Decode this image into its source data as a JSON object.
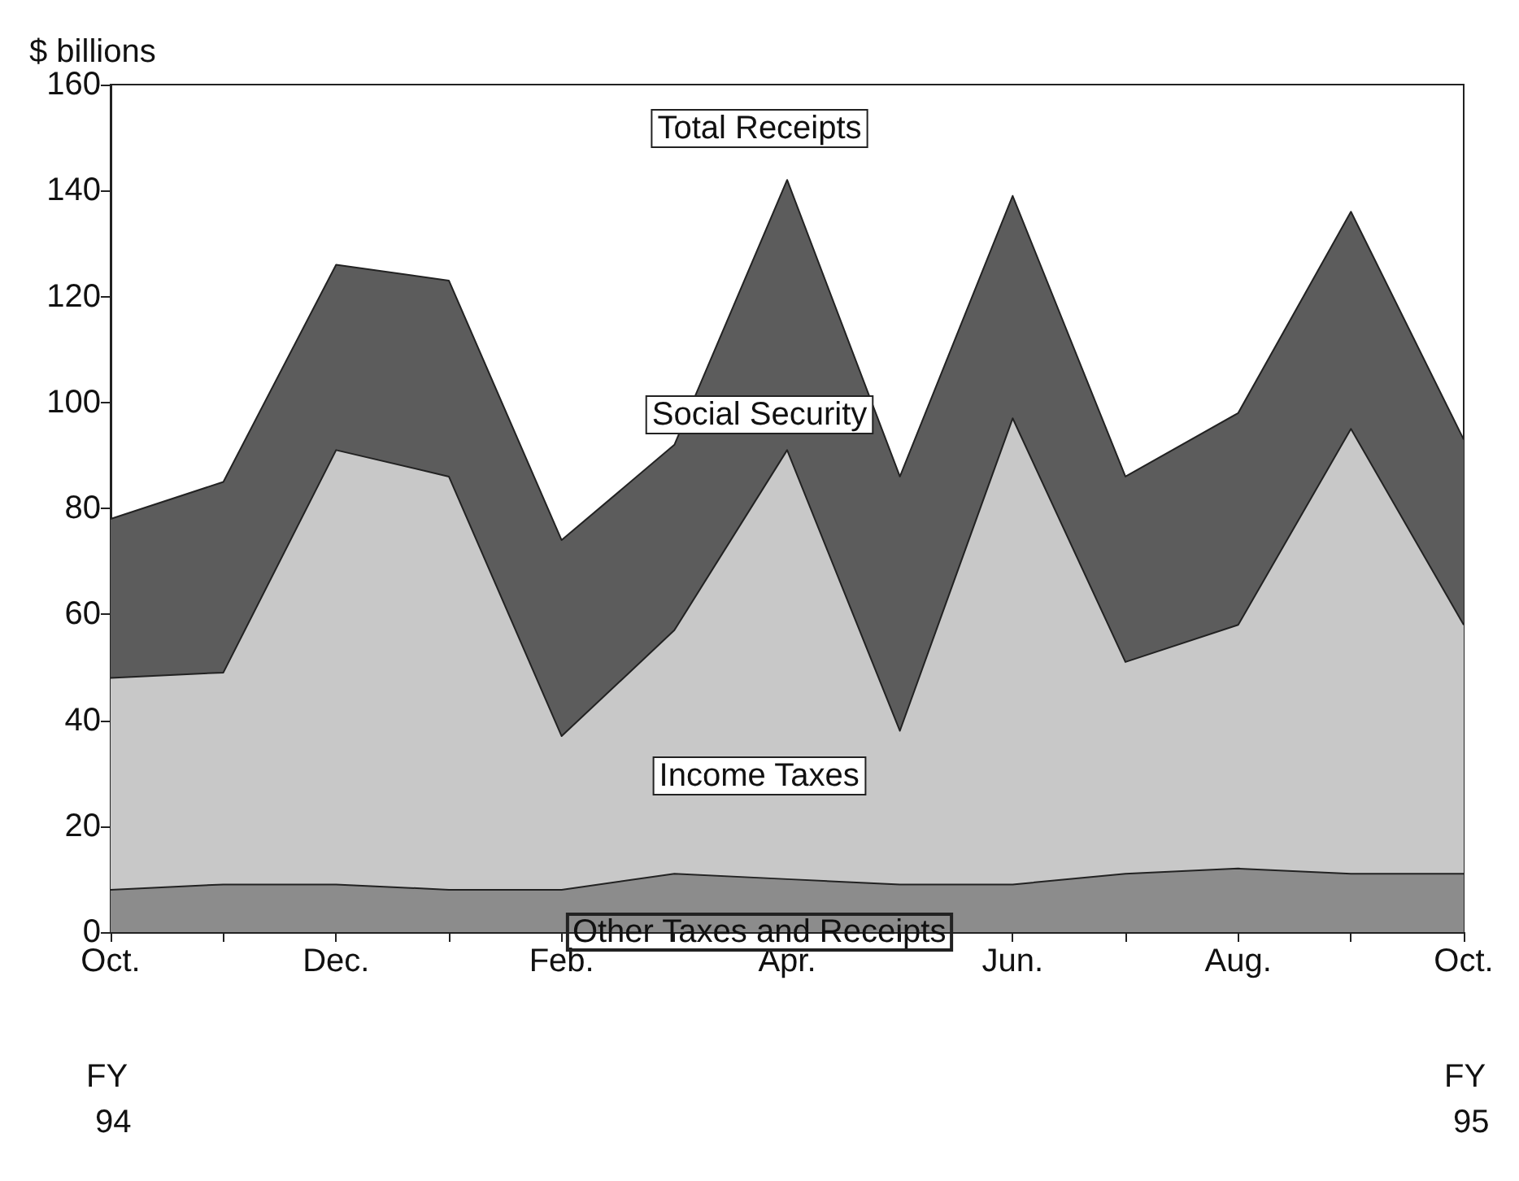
{
  "chart_data": {
    "type": "area",
    "stacked": true,
    "ylabel": "$ billions",
    "categories": [
      "Oct.",
      null,
      "Dec.",
      null,
      "Feb.",
      null,
      "Apr.",
      null,
      "Jun.",
      null,
      "Aug.",
      null,
      "Oct."
    ],
    "series": [
      {
        "name": "Other Taxes and Receipts",
        "color": "#8c8c8c",
        "values": [
          8,
          9,
          9,
          8,
          8,
          11,
          10,
          9,
          9,
          11,
          12,
          11,
          11
        ]
      },
      {
        "name": "Income Taxes",
        "color": "#c8c8c8",
        "values": [
          40,
          40,
          82,
          78,
          29,
          46,
          81,
          29,
          88,
          40,
          46,
          84,
          47
        ]
      },
      {
        "name": "Social Security",
        "color": "#5c5c5c",
        "values": [
          30,
          36,
          35,
          37,
          37,
          35,
          51,
          48,
          42,
          35,
          40,
          41,
          35
        ]
      }
    ],
    "ylim": [
      0,
      160
    ],
    "yticks": [
      0,
      20,
      40,
      60,
      80,
      100,
      120,
      140,
      160
    ],
    "grid": false,
    "legend": false,
    "annotations": [
      "Total Receipts",
      "FY 94",
      "FY 95"
    ]
  }
}
